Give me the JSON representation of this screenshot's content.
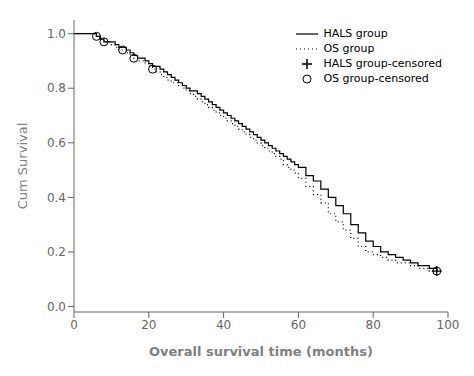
{
  "chart_data": {
    "type": "step",
    "title": "",
    "xlabel": "Overall survival time (months)",
    "ylabel": "Cum Survival",
    "xlim": [
      0,
      100
    ],
    "ylim": [
      -0.02,
      1.05
    ],
    "xticks": [
      0,
      20,
      40,
      60,
      80,
      100
    ],
    "yticks": [
      {
        "value": 0.0,
        "label": "0.0"
      },
      0.2,
      0.4,
      0.6,
      0.8,
      {
        "value": 1.0,
        "label": "1.0"
      }
    ],
    "legend": "upper right",
    "series": [
      {
        "name": "HALS group",
        "type": "step",
        "color": "#000000",
        "line_style": "solid",
        "x": [
          0,
          5,
          6,
          7,
          8,
          10,
          11,
          12,
          13,
          14,
          15,
          16,
          17,
          18,
          19,
          20,
          21,
          22,
          23,
          24,
          25,
          26,
          27,
          28,
          29,
          30,
          31,
          32,
          33,
          34,
          35,
          36,
          37,
          38,
          39,
          40,
          41,
          42,
          43,
          44,
          45,
          46,
          47,
          48,
          49,
          50,
          51,
          52,
          53,
          54,
          55,
          56,
          57,
          58,
          59,
          60,
          62,
          64,
          66,
          68,
          70,
          72,
          74,
          76,
          78,
          80,
          82,
          84,
          86,
          88,
          90,
          92,
          95,
          97
        ],
        "values": [
          1.0,
          1.0,
          0.99,
          0.98,
          0.97,
          0.97,
          0.96,
          0.95,
          0.95,
          0.94,
          0.93,
          0.92,
          0.91,
          0.91,
          0.9,
          0.89,
          0.88,
          0.88,
          0.87,
          0.86,
          0.85,
          0.84,
          0.83,
          0.82,
          0.81,
          0.8,
          0.79,
          0.79,
          0.78,
          0.77,
          0.76,
          0.75,
          0.74,
          0.73,
          0.72,
          0.71,
          0.7,
          0.69,
          0.68,
          0.67,
          0.66,
          0.65,
          0.64,
          0.63,
          0.62,
          0.61,
          0.6,
          0.59,
          0.58,
          0.57,
          0.56,
          0.55,
          0.54,
          0.53,
          0.52,
          0.51,
          0.48,
          0.46,
          0.43,
          0.4,
          0.37,
          0.34,
          0.3,
          0.27,
          0.24,
          0.22,
          0.2,
          0.19,
          0.18,
          0.17,
          0.16,
          0.15,
          0.14,
          0.13
        ]
      },
      {
        "name": "OS group",
        "type": "step",
        "color": "#000000",
        "line_style": "dotted",
        "x": [
          0,
          5,
          6,
          7,
          8,
          9,
          10,
          11,
          12,
          13,
          14,
          15,
          16,
          17,
          18,
          19,
          20,
          21,
          22,
          23,
          24,
          25,
          26,
          27,
          28,
          29,
          30,
          31,
          32,
          33,
          34,
          35,
          36,
          37,
          38,
          39,
          40,
          41,
          42,
          43,
          44,
          45,
          46,
          47,
          48,
          49,
          50,
          51,
          52,
          53,
          54,
          55,
          56,
          57,
          58,
          59,
          60,
          62,
          64,
          66,
          68,
          70,
          72,
          74,
          76,
          78,
          80,
          82,
          84,
          86,
          90,
          92,
          95,
          97
        ],
        "values": [
          1.0,
          1.0,
          0.99,
          0.98,
          0.97,
          0.97,
          0.96,
          0.95,
          0.94,
          0.94,
          0.93,
          0.92,
          0.91,
          0.9,
          0.9,
          0.89,
          0.88,
          0.87,
          0.86,
          0.85,
          0.84,
          0.83,
          0.82,
          0.82,
          0.81,
          0.8,
          0.79,
          0.78,
          0.77,
          0.76,
          0.75,
          0.74,
          0.73,
          0.72,
          0.71,
          0.7,
          0.69,
          0.68,
          0.67,
          0.66,
          0.65,
          0.64,
          0.63,
          0.62,
          0.61,
          0.6,
          0.59,
          0.58,
          0.57,
          0.56,
          0.55,
          0.54,
          0.52,
          0.51,
          0.5,
          0.49,
          0.47,
          0.44,
          0.41,
          0.38,
          0.34,
          0.31,
          0.28,
          0.25,
          0.22,
          0.2,
          0.19,
          0.18,
          0.17,
          0.16,
          0.15,
          0.14,
          0.13,
          0.13
        ]
      },
      {
        "name": "HALS group-censored",
        "type": "scatter",
        "color": "#000000",
        "marker": "plus",
        "x": [
          97
        ],
        "values": [
          0.13
        ]
      },
      {
        "name": "OS group-censored",
        "type": "scatter",
        "color": "#000000",
        "marker": "circle",
        "x": [
          6,
          8,
          13,
          16,
          21,
          97
        ],
        "values": [
          0.99,
          0.97,
          0.94,
          0.91,
          0.87,
          0.13
        ]
      }
    ]
  }
}
